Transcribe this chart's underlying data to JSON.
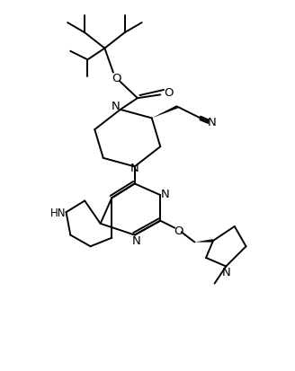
{
  "figsize": [
    3.28,
    4.14
  ],
  "dpi": 100,
  "bg_color": "#ffffff",
  "line_color": "#000000",
  "line_width": 1.4,
  "font_size": 8.5,
  "xlim": [
    0,
    10
  ],
  "ylim": [
    0,
    13
  ]
}
